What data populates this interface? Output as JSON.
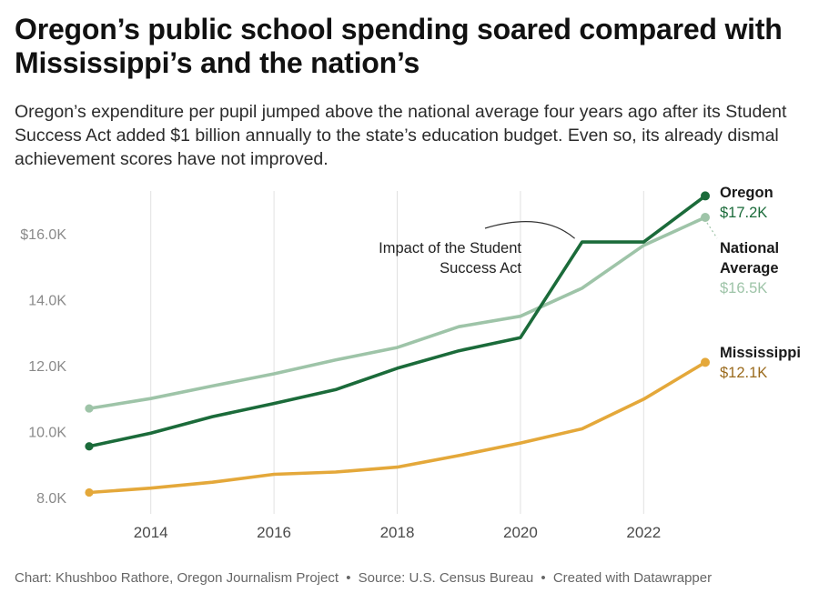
{
  "title": "Oregon’s public school spending soared compared with Mississippi’s and the nation’s",
  "subtitle": "Oregon’s expenditure per pupil jumped above the national average four years ago after its Student Success Act added $1 billion annually to the state’s education budget. Even so, its already dismal achievement scores have not improved.",
  "footer": {
    "credit": "Chart: Khushboo Rathore, Oregon Journalism Project",
    "source": "Source: U.S. Census Bureau",
    "tool": "Created with Datawrapper",
    "separator": "•"
  },
  "chart_data": {
    "type": "line",
    "x": [
      2013,
      2014,
      2015,
      2016,
      2017,
      2018,
      2019,
      2020,
      2021,
      2022,
      2023
    ],
    "xlim": [
      2013,
      2023
    ],
    "ylim": [
      7500,
      17300
    ],
    "x_ticks": [
      {
        "value": 2014,
        "label": "2014"
      },
      {
        "value": 2016,
        "label": "2016"
      },
      {
        "value": 2018,
        "label": "2018"
      },
      {
        "value": 2020,
        "label": "2020"
      },
      {
        "value": 2022,
        "label": "2022"
      }
    ],
    "y_ticks": [
      {
        "value": 8000,
        "label": "8.0K"
      },
      {
        "value": 10000,
        "label": "10.0K"
      },
      {
        "value": 12000,
        "label": "12.0K"
      },
      {
        "value": 14000,
        "label": "14.0K"
      },
      {
        "value": 16000,
        "label": "$16.0K"
      }
    ],
    "grid": "vertical",
    "series": [
      {
        "name": "National Average",
        "id": "national",
        "color": "#9ec4a8",
        "values": [
          10700,
          11000,
          11380,
          11750,
          12170,
          12550,
          13180,
          13500,
          14350,
          15650,
          16500
        ],
        "label_lines": [
          "National",
          "Average"
        ],
        "value_label": "$16.5K"
      },
      {
        "name": "Mississippi",
        "id": "mississippi",
        "color": "#e4a83a",
        "value_color": "#9a6a1c",
        "values": [
          8150,
          8280,
          8460,
          8700,
          8770,
          8920,
          9270,
          9650,
          10080,
          10980,
          12100
        ],
        "label_lines": [
          "Mississippi"
        ],
        "value_label": "$12.1K"
      },
      {
        "name": "Oregon",
        "id": "oregon",
        "color": "#1b6b3a",
        "values": [
          9550,
          9950,
          10450,
          10850,
          11270,
          11920,
          12450,
          12850,
          15750,
          15750,
          17150
        ],
        "label_lines": [
          "Oregon"
        ],
        "value_label": "$17.2K"
      }
    ],
    "annotations": [
      {
        "text_lines": [
          "Impact of the Student",
          "Success Act"
        ],
        "x": 2021,
        "y": 15750
      }
    ]
  }
}
